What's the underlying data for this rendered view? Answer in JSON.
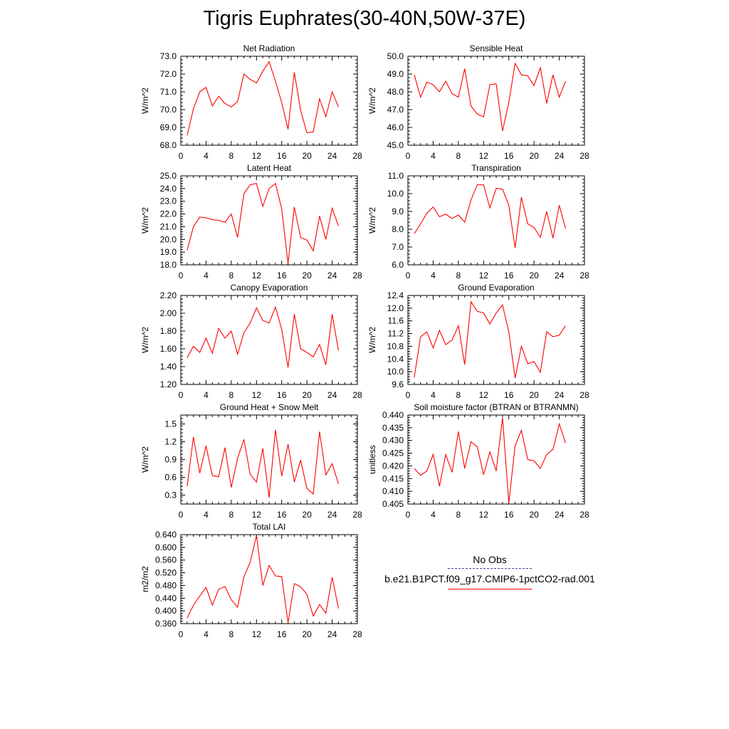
{
  "title": "Tigris Euphrates(30-40N,50W-37E)",
  "legend": {
    "obs_label": "No Obs",
    "case_label": "b.e21.B1PCT.f09_g17.CMIP6-1pctCO2-rad.001",
    "obs_color": "#3040a0",
    "case_color": "#ff0000"
  },
  "chart_data": [
    {
      "type": "line",
      "title": "Net Radiation",
      "ylabel": "W/m^2",
      "xlim": [
        0,
        28
      ],
      "ylim": [
        68.0,
        73.0
      ],
      "xticks": [
        0,
        4,
        8,
        12,
        16,
        20,
        24,
        28
      ],
      "yticks": [
        "68.0",
        "69.0",
        "70.0",
        "71.0",
        "72.0",
        "73.0"
      ],
      "x": [
        1,
        2,
        3,
        4,
        5,
        6,
        7,
        8,
        9,
        10,
        11,
        12,
        13,
        14,
        15,
        16,
        17,
        18,
        19,
        20,
        21,
        22,
        23,
        24,
        25
      ],
      "series": [
        {
          "values": [
            68.55,
            70.05,
            71.0,
            71.25,
            70.2,
            70.75,
            70.35,
            70.15,
            70.45,
            72.0,
            71.7,
            71.5,
            72.15,
            72.7,
            71.6,
            70.4,
            68.9,
            72.1,
            69.95,
            68.7,
            68.75,
            70.6,
            69.6,
            71.0,
            70.15
          ]
        }
      ]
    },
    {
      "type": "line",
      "title": "Sensible Heat",
      "ylabel": "W/m^2",
      "xlim": [
        0,
        28
      ],
      "ylim": [
        45.0,
        50.0
      ],
      "xticks": [
        0,
        4,
        8,
        12,
        16,
        20,
        24,
        28
      ],
      "yticks": [
        "45.0",
        "46.0",
        "47.0",
        "48.0",
        "49.0",
        "50.0"
      ],
      "x": [
        1,
        2,
        3,
        4,
        5,
        6,
        7,
        8,
        9,
        10,
        11,
        12,
        13,
        14,
        15,
        16,
        17,
        18,
        19,
        20,
        21,
        22,
        23,
        24,
        25
      ],
      "series": [
        {
          "values": [
            48.95,
            47.7,
            48.55,
            48.4,
            48.0,
            48.6,
            47.9,
            47.7,
            49.3,
            47.2,
            46.75,
            46.6,
            48.4,
            48.45,
            45.8,
            47.4,
            49.6,
            48.95,
            48.9,
            48.35,
            49.35,
            47.35,
            48.95,
            47.7,
            48.6
          ]
        }
      ]
    },
    {
      "type": "line",
      "title": "Latent Heat",
      "ylabel": "W/m^2",
      "xlim": [
        0,
        28
      ],
      "ylim": [
        18.0,
        25.0
      ],
      "xticks": [
        0,
        4,
        8,
        12,
        16,
        20,
        24,
        28
      ],
      "yticks": [
        "18.0",
        "19.0",
        "20.0",
        "21.0",
        "22.0",
        "23.0",
        "24.0",
        "25.0"
      ],
      "x": [
        1,
        2,
        3,
        4,
        5,
        6,
        7,
        8,
        9,
        10,
        11,
        12,
        13,
        14,
        15,
        16,
        17,
        18,
        19,
        20,
        21,
        22,
        23,
        24,
        25
      ],
      "series": [
        {
          "values": [
            19.15,
            21.0,
            21.75,
            21.7,
            21.55,
            21.5,
            21.35,
            22.0,
            20.15,
            23.6,
            24.3,
            24.4,
            22.6,
            24.0,
            24.4,
            22.4,
            18.1,
            22.55,
            20.15,
            19.95,
            19.1,
            21.85,
            20.0,
            22.45,
            21.05
          ]
        }
      ]
    },
    {
      "type": "line",
      "title": "Transpiration",
      "ylabel": "W/m^2",
      "xlim": [
        0,
        28
      ],
      "ylim": [
        6.0,
        11.0
      ],
      "xticks": [
        0,
        4,
        8,
        12,
        16,
        20,
        24,
        28
      ],
      "yticks": [
        "6.0",
        "7.0",
        "8.0",
        "9.0",
        "10.0",
        "11.0"
      ],
      "x": [
        1,
        2,
        3,
        4,
        5,
        6,
        7,
        8,
        9,
        10,
        11,
        12,
        13,
        14,
        15,
        16,
        17,
        18,
        19,
        20,
        21,
        22,
        23,
        24,
        25
      ],
      "series": [
        {
          "values": [
            7.75,
            8.3,
            8.9,
            9.25,
            8.7,
            8.85,
            8.6,
            8.8,
            8.4,
            9.65,
            10.5,
            10.5,
            9.2,
            10.3,
            10.25,
            9.35,
            6.95,
            9.8,
            8.3,
            8.1,
            7.55,
            9.0,
            7.5,
            9.35,
            8.05
          ]
        }
      ]
    },
    {
      "type": "line",
      "title": "Canopy Evaporation",
      "ylabel": "W/m^2",
      "xlim": [
        0,
        28
      ],
      "ylim": [
        1.2,
        2.2
      ],
      "xticks": [
        0,
        4,
        8,
        12,
        16,
        20,
        24,
        28
      ],
      "yticks": [
        "1.20",
        "1.40",
        "1.60",
        "1.80",
        "2.00",
        "2.20"
      ],
      "x": [
        1,
        2,
        3,
        4,
        5,
        6,
        7,
        8,
        9,
        10,
        11,
        12,
        13,
        14,
        15,
        16,
        17,
        18,
        19,
        20,
        21,
        22,
        23,
        24,
        25
      ],
      "series": [
        {
          "values": [
            1.5,
            1.63,
            1.56,
            1.72,
            1.55,
            1.83,
            1.72,
            1.8,
            1.54,
            1.78,
            1.89,
            2.06,
            1.92,
            1.89,
            2.07,
            1.82,
            1.39,
            1.99,
            1.6,
            1.56,
            1.51,
            1.65,
            1.42,
            1.99,
            1.58
          ]
        }
      ]
    },
    {
      "type": "line",
      "title": "Ground Evaporation",
      "ylabel": "W/m^2",
      "xlim": [
        0,
        28
      ],
      "ylim": [
        9.6,
        12.4
      ],
      "xticks": [
        0,
        4,
        8,
        12,
        16,
        20,
        24,
        28
      ],
      "yticks": [
        "9.6",
        "10.0",
        "10.4",
        "10.8",
        "11.2",
        "11.6",
        "12.0",
        "12.4"
      ],
      "x": [
        1,
        2,
        3,
        4,
        5,
        6,
        7,
        8,
        9,
        10,
        11,
        12,
        13,
        14,
        15,
        16,
        17,
        18,
        19,
        20,
        21,
        22,
        23,
        24,
        25
      ],
      "series": [
        {
          "values": [
            9.82,
            11.1,
            11.25,
            10.75,
            11.3,
            10.85,
            11.0,
            11.45,
            10.22,
            12.2,
            11.9,
            11.85,
            11.5,
            11.85,
            12.1,
            11.25,
            9.8,
            10.8,
            10.25,
            10.32,
            9.98,
            11.26,
            11.1,
            11.15,
            11.45
          ]
        }
      ]
    },
    {
      "type": "line",
      "title": "Ground Heat + Snow Melt",
      "ylabel": "W/m^2",
      "xlim": [
        0,
        28
      ],
      "ylim": [
        0.15,
        1.65
      ],
      "xticks": [
        0,
        4,
        8,
        12,
        16,
        20,
        24,
        28
      ],
      "yticks": [
        "0.3",
        "0.6",
        "0.9",
        "1.2",
        "1.5"
      ],
      "ytick_values": [
        0.3,
        0.6,
        0.9,
        1.2,
        1.5
      ],
      "x": [
        1,
        2,
        3,
        4,
        5,
        6,
        7,
        8,
        9,
        10,
        11,
        12,
        13,
        14,
        15,
        16,
        17,
        18,
        19,
        20,
        21,
        22,
        23,
        24,
        25
      ],
      "series": [
        {
          "values": [
            0.45,
            1.28,
            0.67,
            1.13,
            0.63,
            0.61,
            1.1,
            0.43,
            0.92,
            1.24,
            0.65,
            0.52,
            1.09,
            0.26,
            1.4,
            0.62,
            1.16,
            0.52,
            0.89,
            0.41,
            0.32,
            1.37,
            0.64,
            0.83,
            0.49
          ]
        }
      ]
    },
    {
      "type": "line",
      "title": "Soil moisture factor (BTRAN or BTRANMN)",
      "ylabel": "unitless",
      "xlim": [
        0,
        28
      ],
      "ylim": [
        0.405,
        0.44
      ],
      "xticks": [
        0,
        4,
        8,
        12,
        16,
        20,
        24,
        28
      ],
      "yticks": [
        "0.405",
        "0.410",
        "0.415",
        "0.420",
        "0.425",
        "0.430",
        "0.435",
        "0.440"
      ],
      "x": [
        1,
        2,
        3,
        4,
        5,
        6,
        7,
        8,
        9,
        10,
        11,
        12,
        13,
        14,
        15,
        16,
        17,
        18,
        19,
        20,
        21,
        22,
        23,
        24,
        25
      ],
      "series": [
        {
          "values": [
            0.419,
            0.4163,
            0.418,
            0.4245,
            0.412,
            0.4245,
            0.4175,
            0.4335,
            0.419,
            0.4295,
            0.4275,
            0.4165,
            0.4255,
            0.418,
            0.439,
            0.4055,
            0.428,
            0.434,
            0.4225,
            0.422,
            0.419,
            0.4245,
            0.4265,
            0.4365,
            0.429
          ]
        }
      ]
    },
    {
      "type": "line",
      "title": "Total LAI",
      "ylabel": "m2/m2",
      "xlim": [
        0,
        28
      ],
      "ylim": [
        0.36,
        0.64
      ],
      "xticks": [
        0,
        4,
        8,
        12,
        16,
        20,
        24,
        28
      ],
      "yticks": [
        "0.360",
        "0.400",
        "0.440",
        "0.480",
        "0.520",
        "0.560",
        "0.600",
        "0.640"
      ],
      "x": [
        1,
        2,
        3,
        4,
        5,
        6,
        7,
        8,
        9,
        10,
        11,
        12,
        13,
        14,
        15,
        16,
        17,
        18,
        19,
        20,
        21,
        22,
        23,
        24,
        25
      ],
      "series": [
        {
          "values": [
            0.378,
            0.418,
            0.447,
            0.474,
            0.418,
            0.468,
            0.477,
            0.435,
            0.411,
            0.507,
            0.553,
            0.638,
            0.48,
            0.543,
            0.51,
            0.508,
            0.363,
            0.486,
            0.476,
            0.452,
            0.384,
            0.42,
            0.393,
            0.506,
            0.408
          ]
        }
      ]
    }
  ]
}
